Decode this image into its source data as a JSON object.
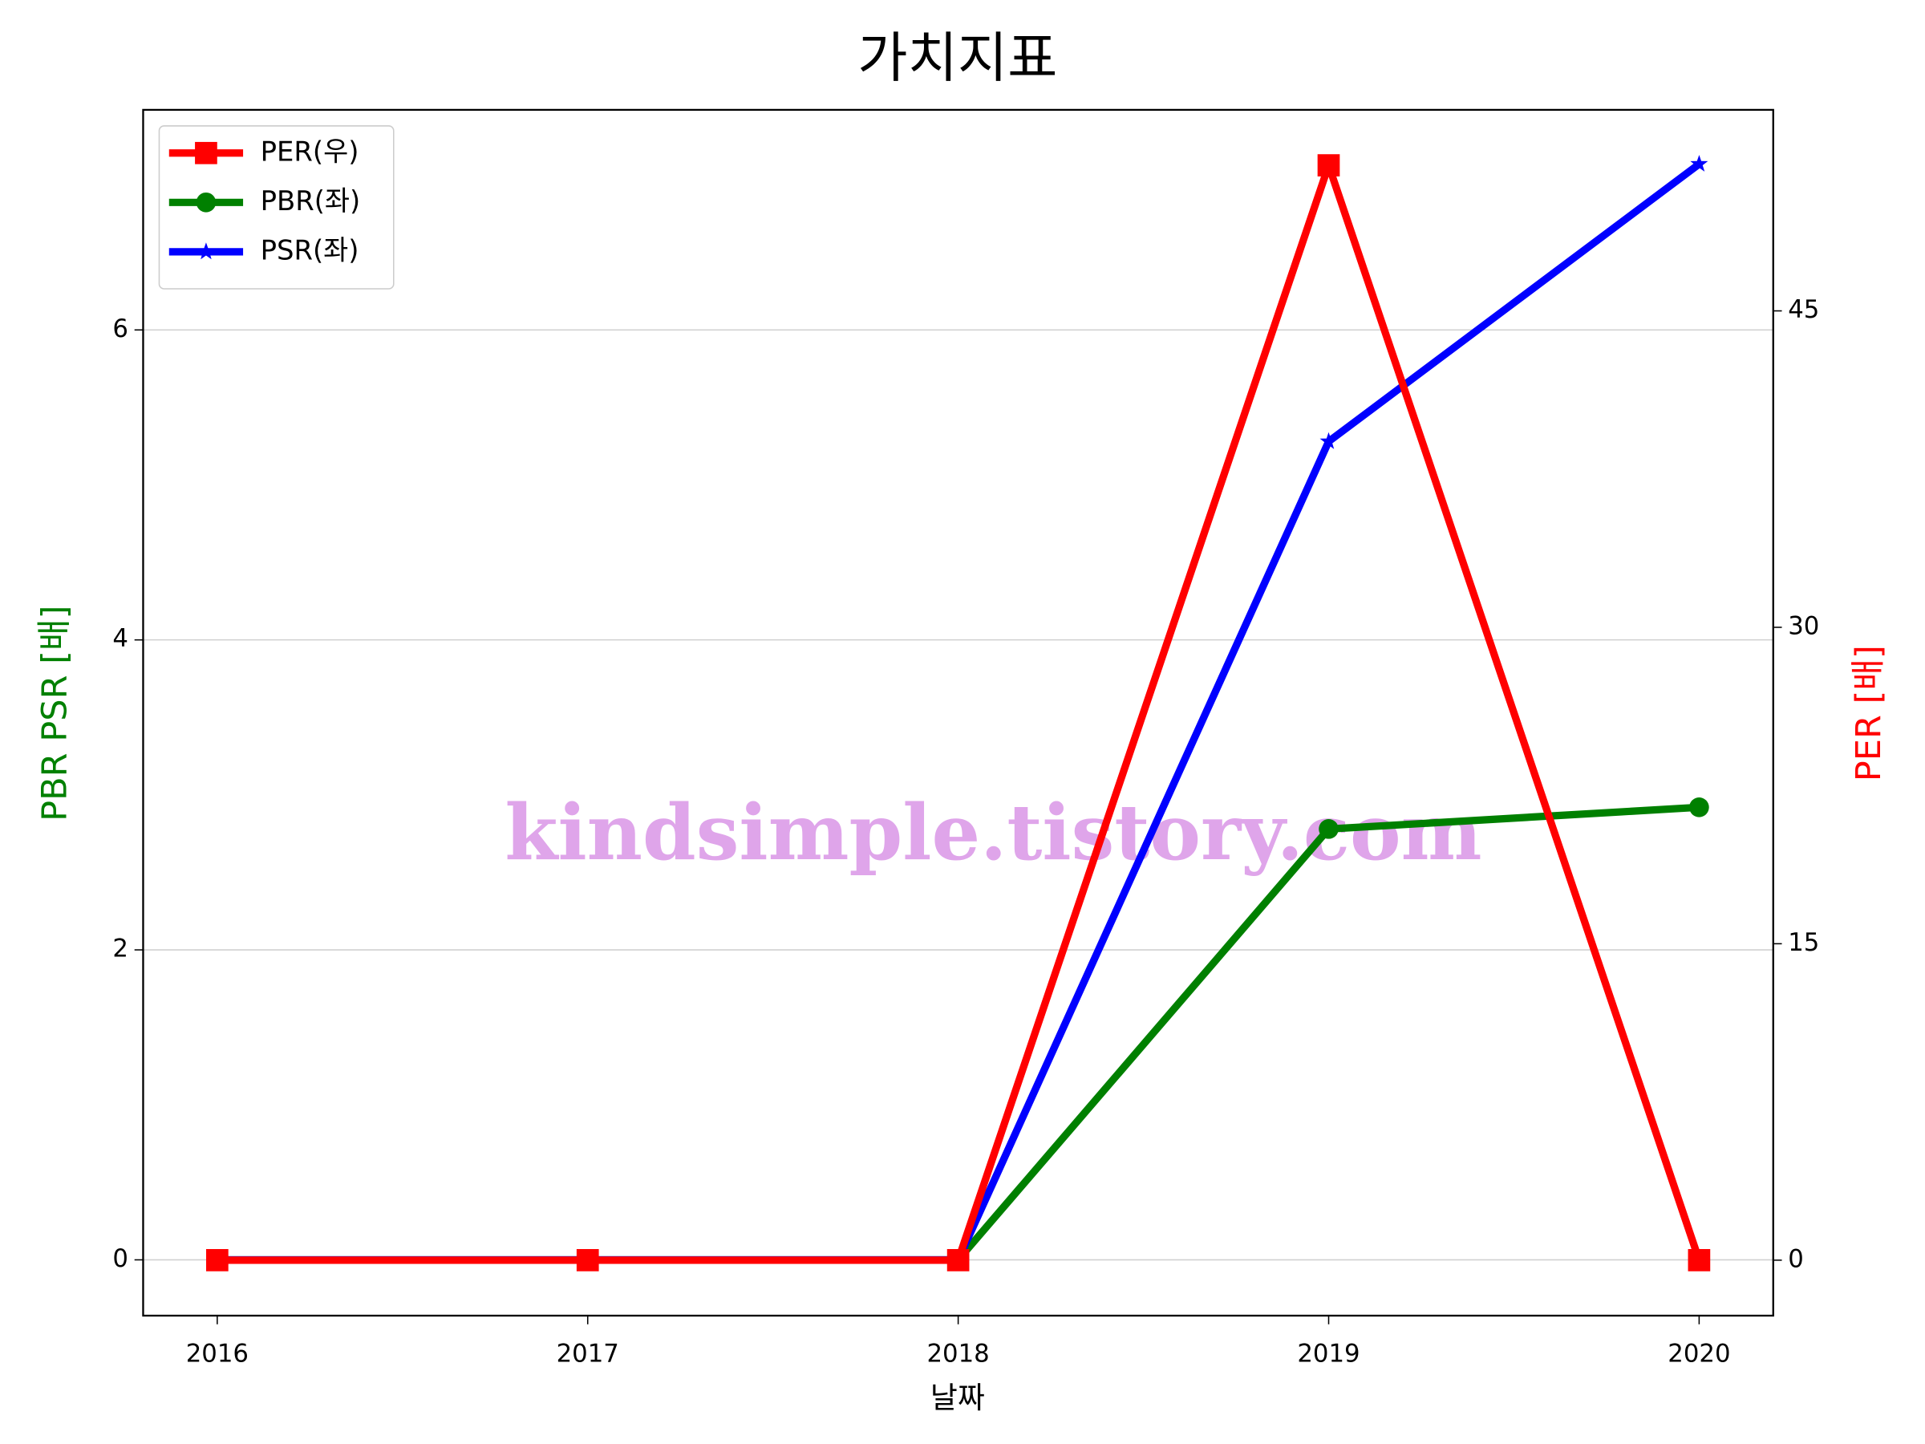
{
  "chart_data": {
    "type": "line",
    "title": "가치지표",
    "x_label": "날짜",
    "y_label": "PBR PSR [배]",
    "y2_label": "PER [배]",
    "y_label_color": "green",
    "y2_label_color": "red",
    "x": [
      2016,
      2017,
      2018,
      2019,
      2020
    ],
    "xlim": [
      2015.8,
      2020.2
    ],
    "xticks": [
      2016,
      2017,
      2018,
      2019,
      2020
    ],
    "ylim": [
      -0.36,
      7.42
    ],
    "yticks": [
      0,
      2,
      4,
      6
    ],
    "y2lim": [
      -2.63,
      54.53
    ],
    "y2ticks": [
      0,
      15,
      30,
      45
    ],
    "grid": true,
    "legend": "upper left",
    "watermark": "kindsimple.tistory.com",
    "series": [
      {
        "name": "PER(우)",
        "color": "red",
        "marker": "square",
        "axis": "y2",
        "values": [
          0,
          0,
          0,
          51.9,
          0
        ]
      },
      {
        "name": "PBR(좌)",
        "color": "green",
        "marker": "circle",
        "values": [
          0,
          0,
          0,
          2.78,
          2.92
        ]
      },
      {
        "name": "PSR(좌)",
        "color": "blue",
        "marker": "star",
        "values": [
          0,
          0,
          0,
          5.28,
          7.07
        ]
      }
    ]
  }
}
